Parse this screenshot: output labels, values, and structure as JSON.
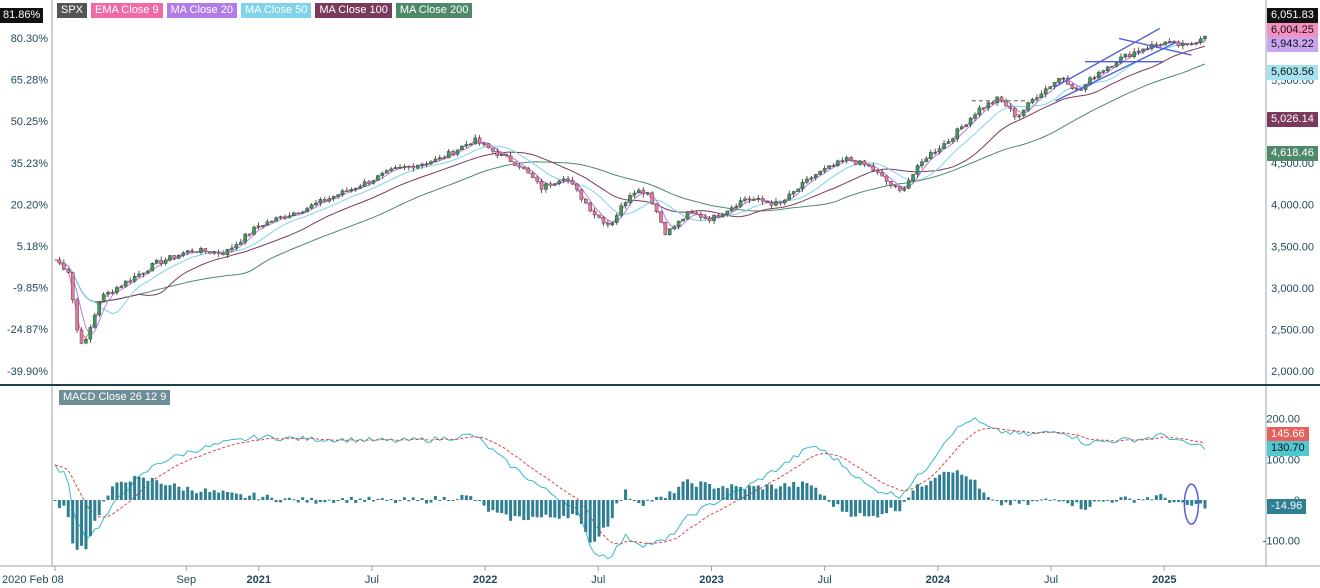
{
  "chart_data": [
    {
      "type": "candlestick",
      "legend": [
        {
          "label": "SPX",
          "color": "#555555"
        },
        {
          "label": "EMA Close 9",
          "color": "#f06aa6"
        },
        {
          "label": "MA Close 20",
          "color": "#b27ce8"
        },
        {
          "label": "MA Close 50",
          "color": "#7fd3ea"
        },
        {
          "label": "MA Close 100",
          "color": "#7a3a5c"
        },
        {
          "label": "MA Close 200",
          "color": "#4f8a68"
        }
      ],
      "left_ticks": [
        "80.30%",
        "65.28%",
        "50.25%",
        "35.23%",
        "20.20%",
        "5.18%",
        "-9.85%",
        "-24.87%",
        "-39.90%"
      ],
      "right_ticks": [
        "5,500.00",
        "5,000.00",
        "4,500.00",
        "4,000.00",
        "3,500.00",
        "3,000.00",
        "2,500.00",
        "2,000.00"
      ],
      "right_tick_values": [
        5500,
        5000,
        4500,
        4000,
        3500,
        3000,
        2500,
        2000
      ],
      "pct_readout": "81.86%",
      "price_labels": [
        {
          "text": "6,051.83",
          "value": 6051.83,
          "bg": "#111111",
          "fg": "#ffffff"
        },
        {
          "text": "6,004.25",
          "value": 6004.25,
          "bg": "#f48fbf",
          "fg": "#111111"
        },
        {
          "text": "5,943.22",
          "value": 5943.22,
          "bg": "#c9a4f0",
          "fg": "#111111"
        },
        {
          "text": "5,603.56",
          "value": 5603.56,
          "bg": "#a6e3f2",
          "fg": "#111111"
        },
        {
          "text": "5,026.14",
          "value": 5026.14,
          "bg": "#7a3a5c",
          "fg": "#ffffff"
        },
        {
          "text": "4,618.46",
          "value": 4618.46,
          "bg": "#4f8a68",
          "fg": "#ffffff"
        }
      ],
      "x_labels": [
        {
          "text": "2020 Feb 08",
          "t": 0
        },
        {
          "text": "Sep",
          "t": 0.58
        },
        {
          "text": "2021",
          "t": 0.9
        },
        {
          "text": "Jul",
          "t": 1.4
        },
        {
          "text": "2022",
          "t": 1.9
        },
        {
          "text": "Jul",
          "t": 2.4
        },
        {
          "text": "2023",
          "t": 2.9
        },
        {
          "text": "Jul",
          "t": 3.4
        },
        {
          "text": "2024",
          "t": 3.9
        },
        {
          "text": "Jul",
          "t": 4.4
        },
        {
          "text": "2025",
          "t": 4.9
        }
      ],
      "price_anchors": [
        [
          0,
          3340
        ],
        [
          0.06,
          3200
        ],
        [
          0.1,
          2450
        ],
        [
          0.13,
          2300
        ],
        [
          0.2,
          2880
        ],
        [
          0.3,
          3050
        ],
        [
          0.45,
          3300
        ],
        [
          0.6,
          3450
        ],
        [
          0.75,
          3420
        ],
        [
          0.9,
          3750
        ],
        [
          1.1,
          3950
        ],
        [
          1.3,
          4180
        ],
        [
          1.5,
          4420
        ],
        [
          1.7,
          4550
        ],
        [
          1.85,
          4780
        ],
        [
          1.95,
          4620
        ],
        [
          2.05,
          4480
        ],
        [
          2.15,
          4200
        ],
        [
          2.25,
          4350
        ],
        [
          2.38,
          3900
        ],
        [
          2.45,
          3750
        ],
        [
          2.55,
          4180
        ],
        [
          2.62,
          4150
        ],
        [
          2.7,
          3650
        ],
        [
          2.8,
          3900
        ],
        [
          2.9,
          3830
        ],
        [
          3.05,
          4080
        ],
        [
          3.2,
          4000
        ],
        [
          3.35,
          4350
        ],
        [
          3.5,
          4550
        ],
        [
          3.6,
          4450
        ],
        [
          3.73,
          4150
        ],
        [
          3.85,
          4580
        ],
        [
          3.95,
          4780
        ],
        [
          4.08,
          5150
        ],
        [
          4.17,
          5280
        ],
        [
          4.25,
          5050
        ],
        [
          4.33,
          5300
        ],
        [
          4.45,
          5550
        ],
        [
          4.52,
          5350
        ],
        [
          4.6,
          5580
        ],
        [
          4.7,
          5750
        ],
        [
          4.8,
          5880
        ],
        [
          4.9,
          5950
        ],
        [
          5.0,
          5900
        ],
        [
          5.08,
          6051.83
        ]
      ],
      "macd_anchors": [
        [
          0,
          80
        ],
        [
          0.05,
          65
        ],
        [
          0.08,
          -30
        ],
        [
          0.14,
          -95
        ],
        [
          0.2,
          -60
        ],
        [
          0.3,
          20
        ],
        [
          0.45,
          90
        ],
        [
          0.6,
          120
        ],
        [
          0.75,
          140
        ],
        [
          0.9,
          155
        ],
        [
          1.1,
          150
        ],
        [
          1.3,
          148
        ],
        [
          1.5,
          145
        ],
        [
          1.7,
          150
        ],
        [
          1.85,
          160
        ],
        [
          2.0,
          90
        ],
        [
          2.15,
          30
        ],
        [
          2.3,
          -20
        ],
        [
          2.38,
          -130
        ],
        [
          2.45,
          -140
        ],
        [
          2.52,
          -90
        ],
        [
          2.6,
          -110
        ],
        [
          2.7,
          -100
        ],
        [
          2.8,
          -40
        ],
        [
          2.9,
          -10
        ],
        [
          3.05,
          30
        ],
        [
          3.2,
          80
        ],
        [
          3.35,
          135
        ],
        [
          3.45,
          100
        ],
        [
          3.6,
          30
        ],
        [
          3.73,
          10
        ],
        [
          3.85,
          80
        ],
        [
          3.95,
          160
        ],
        [
          4.05,
          200
        ],
        [
          4.15,
          170
        ],
        [
          4.3,
          160
        ],
        [
          4.45,
          170
        ],
        [
          4.55,
          140
        ],
        [
          4.65,
          145
        ],
        [
          4.8,
          150
        ],
        [
          4.9,
          160
        ],
        [
          4.98,
          140
        ],
        [
          5.08,
          130.7
        ]
      ],
      "macd_panel": {
        "legend": "MACD Close 26 12 9",
        "right_ticks": [
          "200.00",
          "100.00",
          "0",
          "-100.00"
        ],
        "right_tick_values": [
          200,
          100,
          0,
          -100
        ],
        "value_labels": [
          {
            "text": "145.66",
            "value": 145.66,
            "bg": "#e8605b",
            "fg": "#ffffff"
          },
          {
            "text": "130.70",
            "value": 130.7,
            "bg": "#4fc9cf",
            "fg": "#111111"
          },
          {
            "text": "-14.96",
            "value": -14.96,
            "bg": "#2f7f93",
            "fg": "#ffffff"
          }
        ]
      }
    }
  ]
}
